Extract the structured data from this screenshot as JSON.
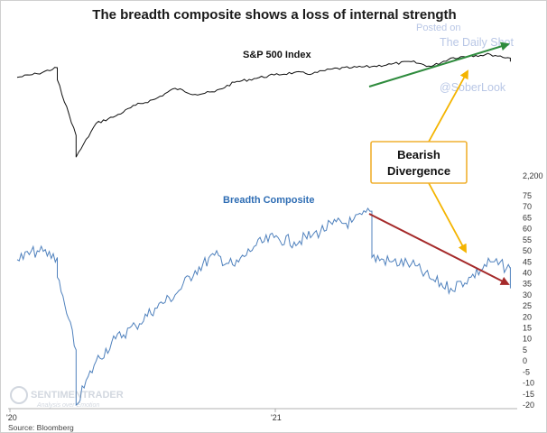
{
  "chart_data": [
    {
      "type": "line",
      "title": "The breadth composite shows a loss of internal strength",
      "series": [
        {
          "name": "S&P 500 Index",
          "color": "#111111",
          "x": [
            "2019-12",
            "2020-01",
            "2020-02",
            "2020-02",
            "2020-03",
            "2020-03",
            "2020-04",
            "2020-05",
            "2020-06",
            "2020-07",
            "2020-08",
            "2020-09",
            "2020-10",
            "2020-11",
            "2020-12",
            "2021-01",
            "2021-02",
            "2021-03",
            "2021-04",
            "2021-05",
            "2021-06",
            "2021-07",
            "2021-08",
            "2021-09",
            "2021-10",
            "2021-11",
            "2021-12",
            "2022-01",
            "2022-01"
          ],
          "values": [
            0.8,
            0.83,
            0.88,
            0.78,
            0.32,
            0.14,
            0.42,
            0.48,
            0.57,
            0.62,
            0.71,
            0.66,
            0.68,
            0.76,
            0.79,
            0.82,
            0.84,
            0.83,
            0.87,
            0.88,
            0.89,
            0.91,
            0.93,
            0.89,
            0.96,
            0.98,
            0.99,
            0.96,
            0.94
          ]
        }
      ]
    },
    {
      "type": "line",
      "series": [
        {
          "name": "Breadth Composite",
          "color": "#4f81bd",
          "x": [
            "2019-12",
            "2020-01",
            "2020-02",
            "2020-02",
            "2020-03",
            "2020-03",
            "2020-04",
            "2020-05",
            "2020-06",
            "2020-07",
            "2020-08",
            "2020-09",
            "2020-10",
            "2020-11",
            "2020-12",
            "2021-01",
            "2021-02",
            "2021-03",
            "2021-04",
            "2021-05",
            "2021-06",
            "2021-06",
            "2021-07",
            "2021-08",
            "2021-09",
            "2021-10",
            "2021-11",
            "2021-12",
            "2022-01",
            "2022-01"
          ],
          "values": [
            46,
            50,
            47,
            38,
            5,
            -20,
            0,
            10,
            16,
            24,
            30,
            41,
            48,
            43,
            52,
            56,
            54,
            57,
            62,
            63,
            68,
            47,
            45,
            44,
            37,
            33,
            38,
            45,
            42,
            33
          ]
        }
      ],
      "y_ticks": [
        "75",
        "70",
        "65",
        "60",
        "55",
        "50",
        "45",
        "40",
        "35",
        "30",
        "25",
        "20",
        "15",
        "10",
        "5",
        "0",
        "-5",
        "-10",
        "-15",
        "-20"
      ],
      "ylim": [
        -20,
        75
      ],
      "top_label": "2,200"
    }
  ],
  "x_ticks": [
    "'20",
    "'21"
  ],
  "annotation": {
    "line1": "Bearish",
    "line2": "Divergence"
  },
  "watermark": {
    "posted": "Posted on",
    "site": "The Daily Shot",
    "handle": "@SoberLook",
    "logo_text": "SENTIMENTRADER",
    "logo_sub": "Analysis over Emotion"
  },
  "source": "Source: Bloomberg",
  "colors": {
    "sp_line": "#111111",
    "breadth_line": "#4f81bd",
    "label_blue": "#2e6db4",
    "green_arrow": "#2e8b3d",
    "red_arrow": "#a52a2a",
    "callout_border": "#f0b030",
    "callout_arrows": "#f4b400"
  }
}
